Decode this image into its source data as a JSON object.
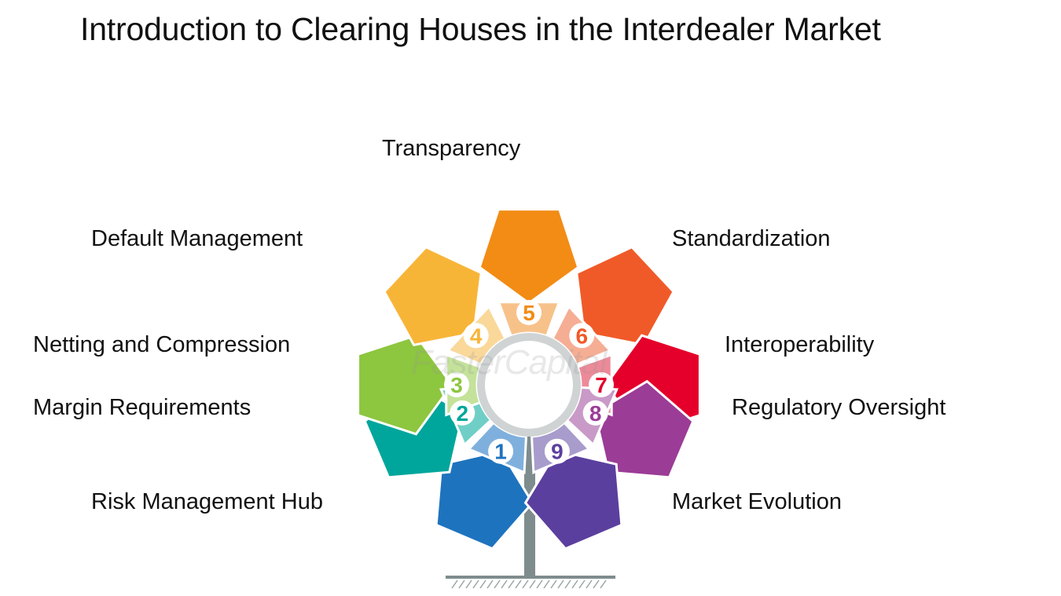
{
  "title": "Introduction to Clearing Houses in the Interdealer Market",
  "watermark": "FasterCapital",
  "items": [
    {
      "num": "1",
      "label": "Risk Management Hub",
      "color": "#1e73be",
      "light": "#7fb0dd"
    },
    {
      "num": "2",
      "label": "Margin Requirements",
      "color": "#00a69c",
      "light": "#6fcfc7"
    },
    {
      "num": "3",
      "label": "Netting and Compression",
      "color": "#8dc63f",
      "light": "#c4e29a"
    },
    {
      "num": "4",
      "label": "Default Management",
      "color": "#f7b538",
      "light": "#fad89a"
    },
    {
      "num": "5",
      "label": "Transparency",
      "color": "#f28c15",
      "light": "#f7c28a"
    },
    {
      "num": "6",
      "label": "Standardization",
      "color": "#f05a28",
      "light": "#f5ae94"
    },
    {
      "num": "7",
      "label": "Interoperability",
      "color": "#e4002b",
      "light": "#ed8a99"
    },
    {
      "num": "8",
      "label": "Regulatory Oversight",
      "color": "#9b3c97",
      "light": "#c99ac7"
    },
    {
      "num": "9",
      "label": "Market Evolution",
      "color": "#5b3f9e",
      "light": "#a89ccc"
    }
  ]
}
